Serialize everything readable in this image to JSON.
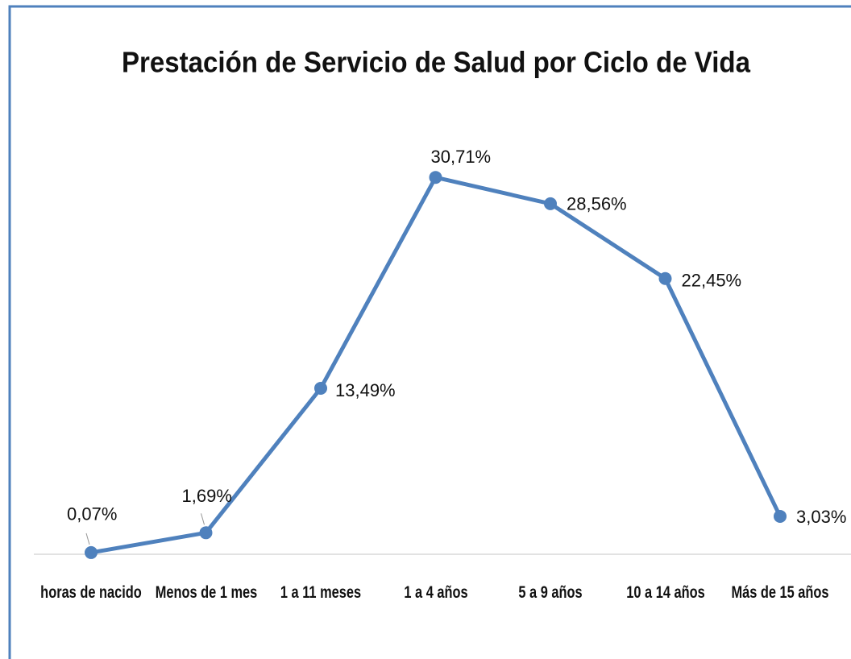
{
  "chart_data": {
    "type": "line",
    "title": "Prestación de Servicio de Salud por Ciclo de Vida",
    "categories": [
      "horas de nacido",
      "Menos de 1 mes",
      "1 a 11 meses",
      "1 a 4 años",
      "5 a 9 años",
      "10 a 14 años",
      "Más de 15 años"
    ],
    "series": [
      {
        "name": "Prestación",
        "color": "#4f81bd",
        "values": [
          0.07,
          1.69,
          13.49,
          30.71,
          28.56,
          22.45,
          3.03
        ],
        "value_labels": [
          "0,07%",
          "1,69%",
          "13,49%",
          "30,71%",
          "28,56%",
          "22,45%",
          "3,03%"
        ]
      }
    ]
  }
}
